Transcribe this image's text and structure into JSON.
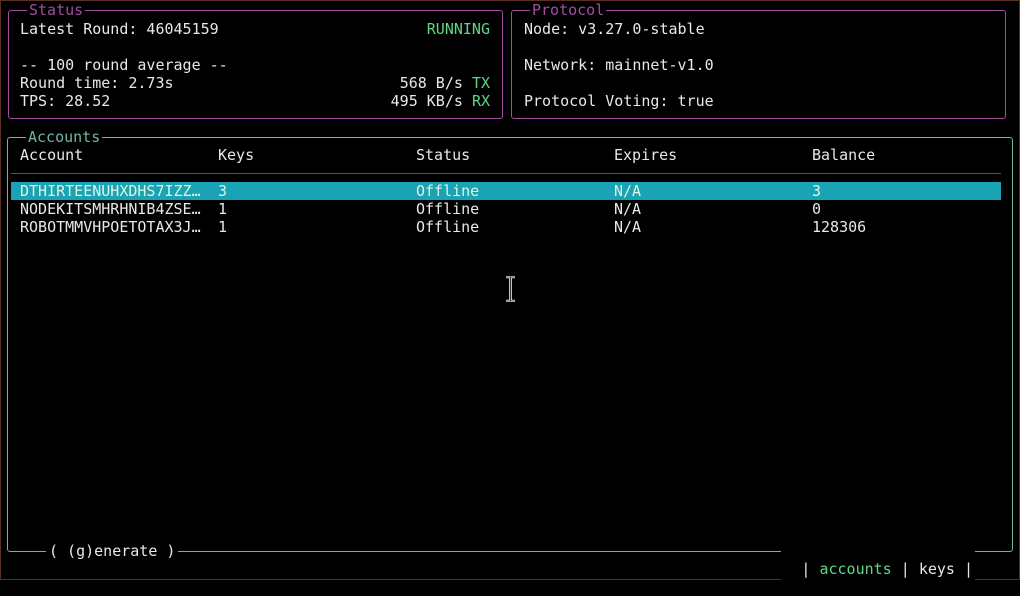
{
  "status": {
    "title": "Status",
    "latest_round": "Latest Round: 46045159",
    "state": "RUNNING",
    "avg_heading": "-- 100 round average --",
    "round_time": "Round time: 2.73s",
    "tps": "TPS: 28.52",
    "tx_value": "568 B/s",
    "tx_label": "TX",
    "rx_value": "495 KB/s",
    "rx_label": "RX"
  },
  "protocol": {
    "title": "Protocol",
    "node": "Node: v3.27.0-stable",
    "network": "Network: mainnet-v1.0",
    "voting": "Protocol Voting: true"
  },
  "accounts": {
    "title": "Accounts",
    "columns": [
      "Account",
      "Keys",
      "Status",
      "Expires",
      "Balance"
    ],
    "rows": [
      [
        "DTHIRTEENUHXDHS7IZZ…",
        "3",
        "Offline",
        "N/A",
        "3"
      ],
      [
        "NODEKITSMHRHNIB4ZSE…",
        "1",
        "Offline",
        "N/A",
        "0"
      ],
      [
        "ROBOTMMVHPOETOTAX3J…",
        "1",
        "Offline",
        "N/A",
        "128306"
      ]
    ],
    "selected_row": 0
  },
  "footer": {
    "generate": "( (g)enerate )",
    "tab_accounts": "accounts",
    "tab_keys": "keys",
    "sep": "|"
  },
  "colors": {
    "status_border": "#a04ea0",
    "accounts_border": "#6fb5a8",
    "accent_green": "#5fd787",
    "selection": "#1aa3b5"
  }
}
